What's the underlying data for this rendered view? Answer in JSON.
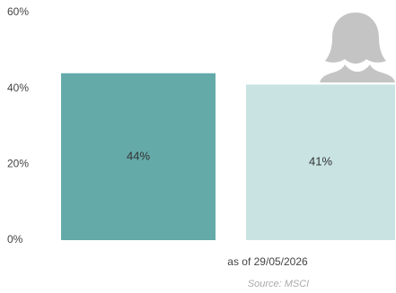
{
  "chart_data": {
    "type": "bar",
    "categories": [
      null,
      null
    ],
    "series": [
      {
        "values": [
          44,
          41
        ],
        "value_labels": [
          "44%",
          "41%"
        ],
        "colors": [
          "#64aaa9",
          "#c8e3e2"
        ]
      }
    ],
    "ylim": [
      0,
      60
    ],
    "yticks": [
      {
        "value": 0,
        "label": "0%"
      },
      {
        "value": 20,
        "label": "20%"
      },
      {
        "value": 40,
        "label": "40%"
      },
      {
        "value": 60,
        "label": "60%"
      }
    ],
    "grid": false,
    "date_note": "as of 29/05/2026",
    "source": "Source: MSCI"
  }
}
